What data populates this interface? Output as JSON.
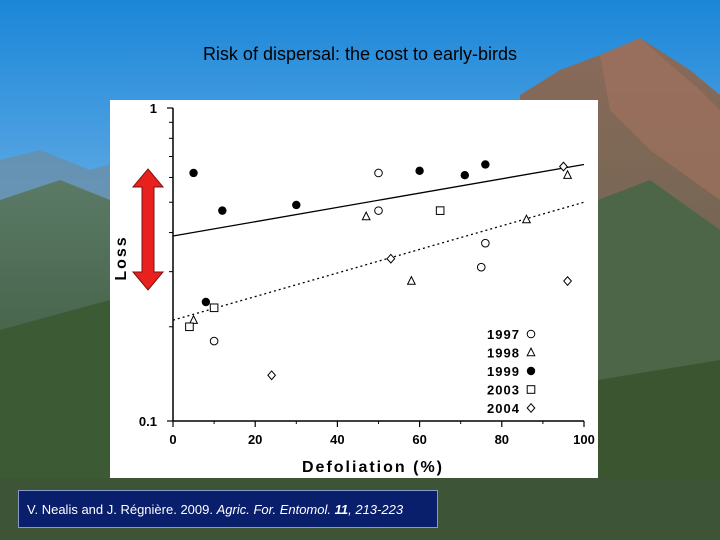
{
  "slide": {
    "title": "Risk of dispersal: the cost to early-birds",
    "citation": {
      "authors": "V. Nealis and J. Régnière. 2009.",
      "journal": "Agric. For. Entomol.",
      "volume": "11",
      "pages": ", 213-223"
    }
  },
  "colors": {
    "arrow": "#e8211e",
    "citation_bg": "#0a1f6b",
    "sky_top": "#1b86d8",
    "sky_bottom": "#8ec3ea",
    "forest": "#3f5a3a"
  },
  "chart_data": {
    "type": "scatter",
    "xlabel": "Defoliation (%)",
    "ylabel": "Loss",
    "xlim": [
      0,
      100
    ],
    "ylim": [
      0.1,
      1
    ],
    "yscale": "log",
    "xticks": [
      "0",
      "20",
      "40",
      "60",
      "80",
      "100"
    ],
    "yticks": [
      "0.1",
      "1"
    ],
    "grid": false,
    "legend_position": "bottom-right",
    "series": [
      {
        "name": "1997",
        "marker": "open-circle",
        "points": [
          [
            50,
            0.62
          ],
          [
            50,
            0.47
          ],
          [
            75,
            0.31
          ],
          [
            76,
            0.37
          ],
          [
            10,
            0.18
          ]
        ]
      },
      {
        "name": "1998",
        "marker": "open-triangle",
        "points": [
          [
            47,
            0.45
          ],
          [
            58,
            0.28
          ],
          [
            86,
            0.44
          ],
          [
            96,
            0.61
          ],
          [
            5,
            0.21
          ]
        ]
      },
      {
        "name": "1999",
        "marker": "filled-circle",
        "points": [
          [
            5,
            0.62
          ],
          [
            12,
            0.47
          ],
          [
            30,
            0.49
          ],
          [
            60,
            0.63
          ],
          [
            71,
            0.61
          ],
          [
            76,
            0.66
          ],
          [
            8,
            0.24
          ]
        ]
      },
      {
        "name": "2003",
        "marker": "open-square",
        "points": [
          [
            65,
            0.47
          ],
          [
            10,
            0.23
          ],
          [
            4,
            0.2
          ]
        ]
      },
      {
        "name": "2004",
        "marker": "open-diamond",
        "points": [
          [
            53,
            0.33
          ],
          [
            95,
            0.65
          ],
          [
            96,
            0.28
          ],
          [
            24,
            0.14
          ]
        ]
      }
    ],
    "fit_lines": [
      {
        "style": "solid",
        "x": [
          0,
          100
        ],
        "y": [
          0.39,
          0.66
        ]
      },
      {
        "style": "dotted",
        "x": [
          0,
          100
        ],
        "y": [
          0.21,
          0.5
        ]
      }
    ],
    "annotations": [
      {
        "type": "double-arrow",
        "x": -7,
        "y_from": 0.27,
        "y_to": 0.62
      }
    ]
  }
}
